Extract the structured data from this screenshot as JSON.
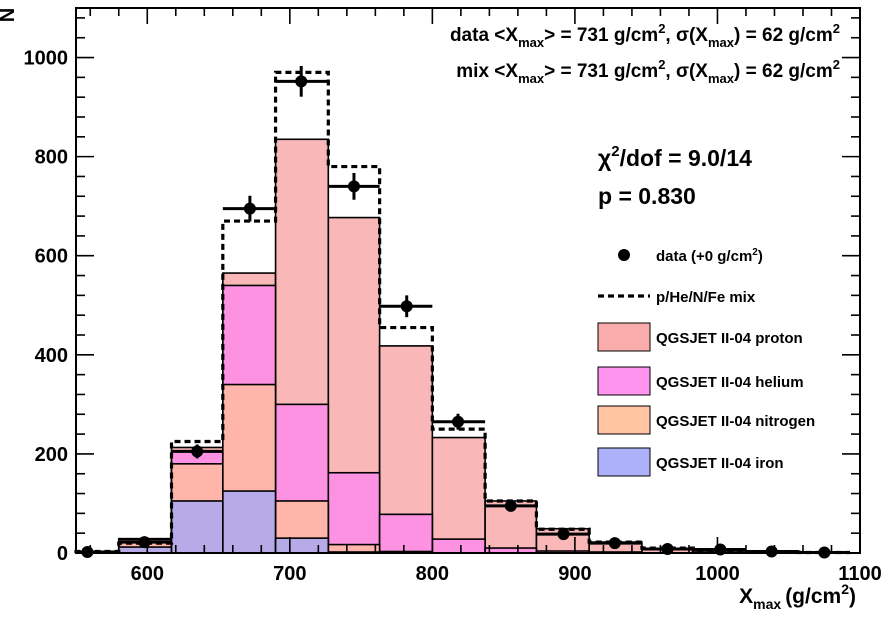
{
  "chart_data": {
    "type": "bar",
    "xlabel": "Xmax (g/cm2)",
    "xlabel_parts": {
      "main": "X",
      "sub": "max",
      "unit": "(g/cm",
      "sup": "2",
      "close": ")"
    },
    "ylabel": "N",
    "xlim": [
      550,
      1100
    ],
    "ylim": [
      0,
      1100
    ],
    "x_ticks": [
      600,
      700,
      800,
      900,
      1000,
      1100
    ],
    "y_ticks": [
      0,
      200,
      400,
      600,
      800,
      1000
    ],
    "bin_edges": [
      540,
      580,
      617,
      653,
      690,
      727,
      763,
      800,
      837,
      873,
      910,
      947,
      983,
      1020,
      1057,
      1093
    ],
    "series": [
      {
        "name": "QGSJET II-04 proton",
        "kind": "stack",
        "color": "#f9a3a3",
        "values": [
          0,
          2,
          8,
          25,
          535,
          515,
          340,
          205,
          95,
          45,
          20,
          8,
          4,
          2,
          0
        ]
      },
      {
        "name": "QGSJET II-04 helium",
        "kind": "stack",
        "color": "#ff88ee",
        "values": [
          0,
          5,
          25,
          200,
          195,
          145,
          75,
          28,
          10,
          4,
          2,
          0,
          0,
          0,
          0
        ]
      },
      {
        "name": "QGSJET II-04 nitrogen",
        "kind": "stack",
        "color": "#ffbf99",
        "values": [
          0,
          10,
          75,
          215,
          75,
          15,
          3,
          0,
          0,
          0,
          0,
          0,
          0,
          0,
          0
        ]
      },
      {
        "name": "QGSJET II-04 iron",
        "kind": "stack",
        "color": "#a3a8f8",
        "values": [
          3,
          12,
          105,
          125,
          30,
          2,
          0,
          0,
          0,
          0,
          0,
          0,
          0,
          0,
          0
        ]
      },
      {
        "name": "p/He/N/Fe mix",
        "kind": "step",
        "values": [
          3,
          20,
          225,
          670,
          970,
          780,
          455,
          250,
          105,
          48,
          22,
          10,
          5,
          2,
          1
        ]
      },
      {
        "name": "data (+0 g/cm2)",
        "kind": "points",
        "x": [
          558,
          598,
          635,
          672,
          708,
          745,
          782,
          818,
          855,
          892,
          928,
          965,
          1002,
          1038,
          1075
        ],
        "y": [
          2,
          22,
          205,
          695,
          952,
          740,
          498,
          265,
          95,
          38,
          20,
          8,
          7,
          3,
          1
        ],
        "yerr": [
          2,
          5,
          14,
          26,
          31,
          27,
          22,
          16,
          10,
          6,
          4,
          3,
          3,
          2,
          1
        ]
      }
    ],
    "legend_position": "right",
    "legend": [
      {
        "label": "data (+0 g/cm",
        "sup": "2",
        "tail": ")",
        "kind": "points"
      },
      {
        "label": "p/He/N/Fe mix",
        "kind": "step"
      },
      {
        "label": "QGSJET II-04 proton",
        "kind": "box",
        "color": "#f9a3a3"
      },
      {
        "label": "QGSJET II-04 helium",
        "kind": "box",
        "color": "#ff88ee"
      },
      {
        "label": "QGSJET II-04 nitrogen",
        "kind": "box",
        "color": "#ffbf99"
      },
      {
        "label": "QGSJET II-04 iron",
        "kind": "box",
        "color": "#a3a8f8"
      }
    ],
    "annotations": {
      "data_prefix": "data <X",
      "mix_prefix": "mix <X",
      "sub_max": "max",
      "mean_eq": "> = 731 g/cm",
      "sup2": "2",
      "sigma_pre": ", σ(X",
      "sigma_eq": ") = 62 g/cm",
      "chi_pre": "χ",
      "chi_post": "/dof = 9.0/14",
      "pvalue": "p = 0.830"
    }
  }
}
